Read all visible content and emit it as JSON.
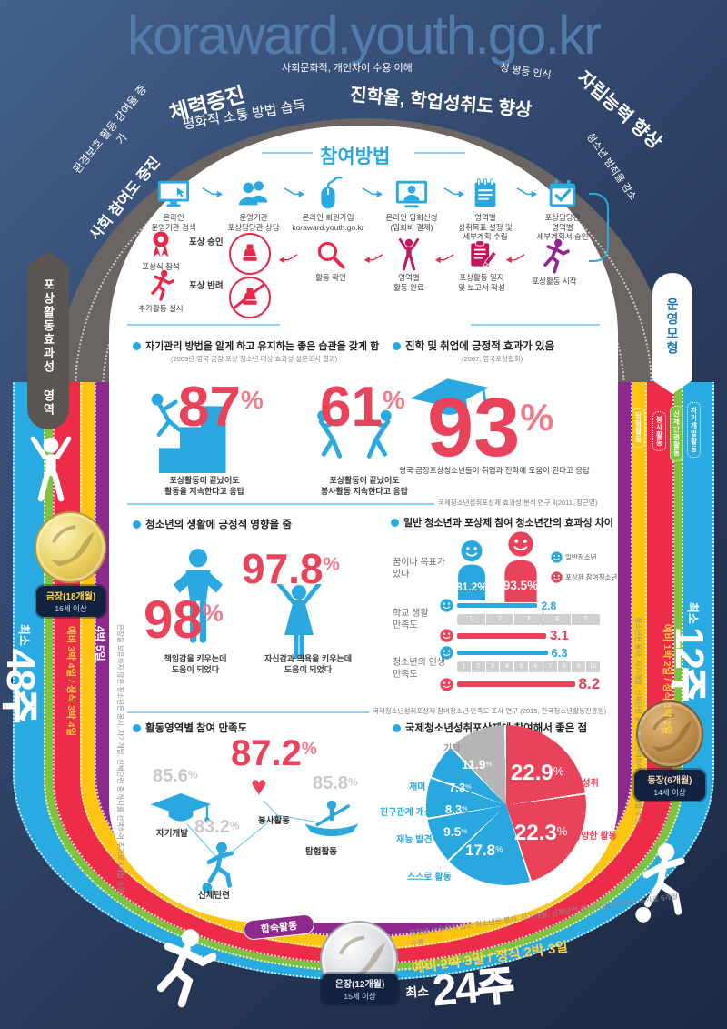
{
  "site_url": "koraward.youth.go.kr",
  "arc": {
    "env": "환경보호 활동 참여율 증가",
    "social": "사회 참여도 증진",
    "fitness": "체력증진",
    "peace": "평화적 소통 방법 습득",
    "culture": "사회문화적, 개인차이 수용 이해",
    "study": "진학율, 학업성취도 향상",
    "gender": "성 평등 인식",
    "independence": "자립능력 향상",
    "crime": "청소년 범죄율 감소"
  },
  "pills": {
    "left": "포상활동효과성 영역",
    "right": "운영모형",
    "camp": "합숙활동"
  },
  "bands": {
    "labels": [
      "탐험활동",
      "봉사활동",
      "신체단련활동",
      "자기개발활동"
    ]
  },
  "medals": {
    "gold": {
      "title": "금장(18개월)",
      "sub": "16세 이상",
      "weeks_prefix": "최소",
      "weeks": "48",
      "weeks_unit": "주",
      "camp_a": "예비 3박 4일 / 정식 3박 4일",
      "camp_b": "4박 5일",
      "note": "은장을 보유하지 않은 청소년은 봉사, 자기개발, 신체단련 중 하나를 선택하여 추가로 6개월 수행"
    },
    "silver": {
      "title": "은장(12개월)",
      "sub": "15세 이상",
      "weeks_prefix": "최소",
      "weeks": "24",
      "weeks_unit": "주",
      "camp_a": "예비 2박 3일 / 정식 2박 3일",
      "note": "동장을 보유하지 않은 청소년은 봉사, 자기개발, 신체단련 중 하나를 선택하여 추가로 6개월 수행"
    },
    "bronze": {
      "title": "동장(6개월)",
      "sub": "14세 이상",
      "weeks_prefix": "최소",
      "weeks": "12",
      "weeks_unit": "주",
      "camp_a": "예비 1박 2일 / 정식 1박 2일",
      "note": "청소년은 봉사, 자기개발, 신체단련 중 하나를 선택하여 추가로 3개월 수행"
    }
  },
  "participation": {
    "title": "참여방법",
    "steps": [
      {
        "label": "온라인\n운영기관 검색",
        "icon": "monitor-search-icon"
      },
      {
        "label": "운영기관\n포상담당관 상담",
        "icon": "people-icon"
      },
      {
        "label": "온라인 회원가입\nkoraward.youth.go.kr",
        "icon": "mouse-icon"
      },
      {
        "label": "온라인 입회신청\n(입회비 결제)",
        "icon": "monitor-user-icon"
      },
      {
        "label": "영역별\n성취목표 설정 및\n세부계획 수립",
        "icon": "notepad-icon"
      },
      {
        "label": "포상담당관\n영역별\n세부계획서 승인",
        "icon": "calendar-check-icon"
      }
    ],
    "flow": [
      {
        "label": "포상활동 시작",
        "icon": "runner-icon"
      },
      {
        "label": "포상활동 일지\n및 보고서 작성",
        "icon": "clipboard-icon"
      },
      {
        "label": "영역별\n활동 완료",
        "icon": "cheer-icon"
      },
      {
        "label": "활동 확인",
        "icon": "magnifier-icon"
      }
    ],
    "approve": "포상 승인",
    "reject": "포상 반려",
    "ceremony": "포상식 참석",
    "extra": "추가활동 실시"
  },
  "effect": {
    "title": "포상활동 효과성 및 만족도",
    "q1": {
      "heading": "자기관리 방법을 알게 하고 유지하는 좋은 습관을 갖게 함",
      "source": "(2009년 영국 금장 포상 청소년 대상 효과성 설문조사 결과)",
      "stats": [
        {
          "value": "87",
          "unit": "%",
          "caption": "포상활동이 끝났어도\n활동을 지속한다고 응답"
        },
        {
          "value": "61",
          "unit": "%",
          "caption": "포상활동이 끝났어도\n봉사활동 지속한다고 응답"
        }
      ]
    },
    "q2": {
      "heading": "진학 및 취업에 긍정적 효과가 있음",
      "source": "(2007, 영국포상협회)",
      "value": "93",
      "unit": "%",
      "caption": "영국 금장포상청소년들이 취업과 진학에 도움이 된다고 응답"
    },
    "source1": "국제청소년성취포상제 효과성 분석 연구 Ⅱ(2011, 장근영)",
    "q3": {
      "heading": "청소년의 생활에 긍정적 영향을 줌",
      "stats": [
        {
          "value": "98",
          "unit": "%",
          "caption": "책임감을 키우는데\n도움이 되었다"
        },
        {
          "value": "97.8",
          "unit": "%",
          "caption": "자신감과 의욕을 키우는데\n도움이 되었다"
        }
      ]
    },
    "source2": "국제청소년성취포상제 참여청소년 만족도 조사 연구 (2015, 한국청소년활동진흥원)"
  },
  "chart_data": [
    {
      "type": "bar",
      "title": "일반 청소년과 포상제 참여 청소년간의 효과성 차이",
      "legend": [
        "일반청소년",
        "포상제 참여청소년"
      ],
      "colors": {
        "general": "#29a8e0",
        "award": "#e8435a"
      },
      "groups": [
        {
          "category": "꿈이나 목표가 있다",
          "unit": "%",
          "general": 81.2,
          "award": 93.5
        },
        {
          "category": "학교 생활 만족도",
          "scale_max": 5,
          "general": 2.8,
          "award": 3.1
        },
        {
          "category": "청소년의 인생 만족도",
          "scale_max": 10,
          "general": 6.3,
          "award": 8.2
        }
      ]
    },
    {
      "type": "bar",
      "title": "활동영역별 참여 만족도",
      "unit": "%",
      "categories": [
        "봉사활동",
        "자기개발",
        "탐험활동",
        "신체단련"
      ],
      "values": [
        87.2,
        85.6,
        85.8,
        83.2
      ]
    },
    {
      "type": "pie",
      "title": "국제청소년성취포상제에 참여해서 좋은 점",
      "unit": "%",
      "slices": [
        {
          "label": "목표성취",
          "value": 22.9,
          "color": "#e8435a"
        },
        {
          "label": "다양한 활동",
          "value": 22.3,
          "color": "#e8435a"
        },
        {
          "label": "스스로 활동",
          "value": 17.8,
          "color": "#29a8e0"
        },
        {
          "label": "재능 발견",
          "value": 9.5,
          "color": "#29a8e0"
        },
        {
          "label": "친구관계 개선",
          "value": 8.3,
          "color": "#29a8e0"
        },
        {
          "label": "재미",
          "value": 7.3,
          "color": "#29a8e0"
        },
        {
          "label": "기타",
          "value": 11.9,
          "color": "#b5b5b5"
        }
      ]
    }
  ]
}
